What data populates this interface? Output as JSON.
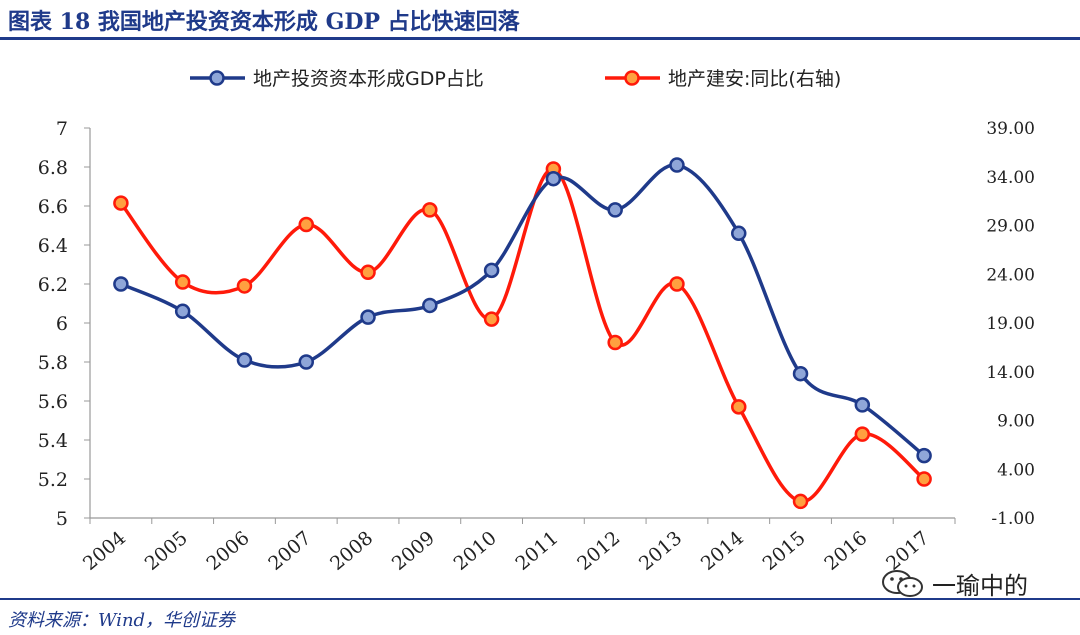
{
  "header": {
    "title": "图表 18   我国地产投资资本形成 GDP 占比快速回落"
  },
  "footer": {
    "source": "资料来源：Wind，华创证券"
  },
  "watermark": {
    "text": "一瑜中的",
    "icon": "wechat-icon"
  },
  "colors": {
    "accent": "#1f3a8a",
    "series1": "#1f3a8a",
    "series2": "#ff1a0a",
    "marker2_fill": "#ffa040"
  },
  "chart_data": {
    "type": "line",
    "title": "",
    "categories": [
      "2004",
      "2005",
      "2006",
      "2007",
      "2008",
      "2009",
      "2010",
      "2011",
      "2012",
      "2013",
      "2014",
      "2015",
      "2016",
      "2017"
    ],
    "series": [
      {
        "name": "地产投资资本形成GDP占比",
        "axis": "left",
        "values": [
          6.2,
          6.06,
          5.81,
          5.8,
          6.03,
          6.09,
          6.27,
          6.74,
          6.58,
          6.81,
          6.46,
          5.74,
          5.58,
          5.32
        ]
      },
      {
        "name": "地产建安:同比(右轴)",
        "axis": "right",
        "values": [
          31.3,
          23.2,
          22.8,
          29.1,
          24.2,
          30.6,
          19.4,
          34.8,
          17.0,
          23.0,
          10.4,
          0.7,
          7.6,
          3.0
        ]
      }
    ],
    "y_left": {
      "min": 5,
      "max": 7,
      "ticks": [
        "7",
        "6.8",
        "6.6",
        "6.4",
        "6.2",
        "6",
        "5.8",
        "5.6",
        "5.4",
        "5.2",
        "5"
      ]
    },
    "y_right": {
      "min": -1,
      "max": 39,
      "ticks": [
        "39.00",
        "34.00",
        "29.00",
        "24.00",
        "19.00",
        "14.00",
        "9.00",
        "4.00",
        "-1.00"
      ]
    },
    "legend_position": "top",
    "grid": false
  }
}
